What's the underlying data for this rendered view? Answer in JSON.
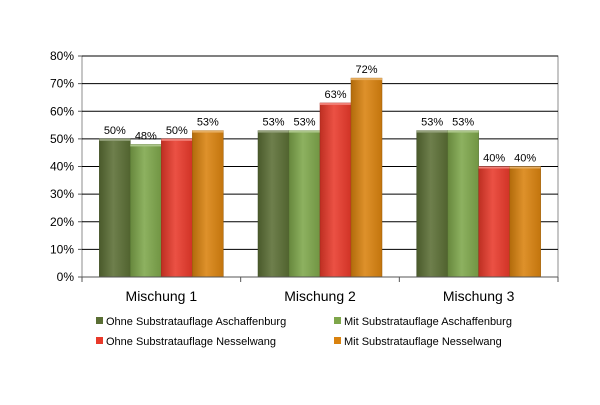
{
  "chart_data": {
    "type": "bar",
    "categories": [
      "Mischung 1",
      "Mischung 2",
      "Mischung 3"
    ],
    "series": [
      {
        "name": "Ohne Substratauflage Aschaffenburg",
        "values": [
          50,
          53,
          53
        ],
        "labels": [
          "50%",
          "53%",
          "53%"
        ],
        "color": "#5a6e34"
      },
      {
        "name": "Mit Substratauflage Aschaffenburg",
        "values": [
          48,
          53,
          53
        ],
        "labels": [
          "48%",
          "53%",
          "53%"
        ],
        "color": "#7ea64a"
      },
      {
        "name": "Ohne Substratauflage Nesselwang",
        "values": [
          50,
          63,
          40
        ],
        "labels": [
          "50%",
          "63%",
          "40%"
        ],
        "color": "#e8392a"
      },
      {
        "name": "Mit Substratauflage Nesselwang",
        "values": [
          53,
          72,
          40
        ],
        "labels": [
          "53%",
          "72%",
          "40%"
        ],
        "color": "#d9820e"
      }
    ],
    "yticks": [
      "0%",
      "10%",
      "20%",
      "30%",
      "40%",
      "50%",
      "60%",
      "70%",
      "80%"
    ],
    "ylim": [
      0,
      80
    ],
    "grid": true,
    "legend_position": "bottom",
    "title": "",
    "xlabel": "",
    "ylabel": ""
  }
}
